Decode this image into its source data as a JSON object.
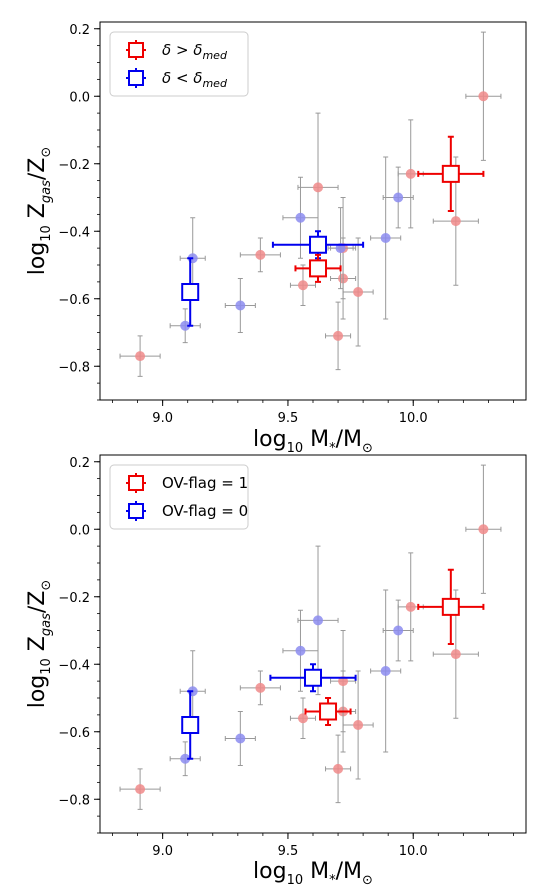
{
  "chart_data": [
    {
      "type": "scatter",
      "xlabel": {
        "base": "log",
        "sub": "10",
        "rest": " M",
        "sub2": "*",
        "tail": "/M",
        "sub3": "⊙"
      },
      "ylabel": {
        "base": "log",
        "sub": "10",
        "rest": " Z",
        "sub2": "gas",
        "tail": "/Z",
        "sub3": "⊙"
      },
      "xlim": [
        8.75,
        10.45
      ],
      "ylim": [
        -0.9,
        0.22
      ],
      "xticks": [
        9.0,
        9.5,
        10.0
      ],
      "xtick_labels": [
        "9.0",
        "9.5",
        "10.0"
      ],
      "yticks": [
        0.2,
        0.0,
        -0.2,
        -0.4,
        -0.6,
        -0.8
      ],
      "ytick_labels": [
        "0.2",
        "0.0",
        "−0.2",
        "−0.4",
        "−0.6",
        "−0.8"
      ],
      "legend": {
        "placement": "top-left",
        "entries": [
          {
            "label_main": "δ > δ",
            "label_sub": "med",
            "color": "#ee0000"
          },
          {
            "label_main": "δ < δ",
            "label_sub": "med",
            "color": "#0000ee"
          }
        ]
      },
      "series": [
        {
          "color": "#ee0000",
          "points": [
            {
              "x": 8.91,
              "y": -0.77,
              "xerr": 0.08,
              "yerr": 0.06
            },
            {
              "x": 9.39,
              "y": -0.47,
              "xerr": 0.08,
              "yerr": 0.05
            },
            {
              "x": 9.56,
              "y": -0.56,
              "xerr": 0.05,
              "yerr": 0.06
            },
            {
              "x": 9.62,
              "y": -0.27,
              "xerr": 0.08,
              "yerr": 0.22
            },
            {
              "x": 9.7,
              "y": -0.71,
              "xerr": 0.05,
              "yerr": 0.1
            },
            {
              "x": 9.72,
              "y": -0.54,
              "xerr": 0.05,
              "yerr": 0.12
            },
            {
              "x": 9.78,
              "y": -0.58,
              "xerr": 0.06,
              "yerr": 0.16
            },
            {
              "x": 9.72,
              "y": -0.45,
              "xerr": 0.05,
              "yerr": 0.15
            },
            {
              "x": 9.99,
              "y": -0.23,
              "xerr": 0.05,
              "yerr": 0.16
            },
            {
              "x": 10.17,
              "y": -0.37,
              "xerr": 0.09,
              "yerr": 0.19
            },
            {
              "x": 10.28,
              "y": 0.0,
              "xerr": 0.07,
              "yerr": 0.19
            }
          ],
          "median": {
            "x": 10.15,
            "y": -0.23,
            "xerr": 0.13,
            "yerr": 0.11
          }
        },
        {
          "color": "#0000ee",
          "points": [
            {
              "x": 9.09,
              "y": -0.68,
              "xerr": 0.06,
              "yerr": 0.05
            },
            {
              "x": 9.12,
              "y": -0.48,
              "xerr": 0.05,
              "yerr": 0.12
            },
            {
              "x": 9.31,
              "y": -0.62,
              "xerr": 0.06,
              "yerr": 0.08
            },
            {
              "x": 9.55,
              "y": -0.36,
              "xerr": 0.07,
              "yerr": 0.12
            },
            {
              "x": 9.71,
              "y": -0.45,
              "xerr": 0.05,
              "yerr": 0.12
            },
            {
              "x": 9.89,
              "y": -0.42,
              "xerr": 0.06,
              "yerr": 0.24
            },
            {
              "x": 9.94,
              "y": -0.3,
              "xerr": 0.06,
              "yerr": 0.09
            }
          ],
          "median": {
            "x": 9.11,
            "y": -0.58,
            "xerr": 0.0,
            "yerr": 0.1
          }
        },
        {
          "color": "#0000ee",
          "points": [],
          "median": {
            "x": 9.62,
            "y": -0.44,
            "xerr": 0.18,
            "yerr": 0.04
          }
        },
        {
          "color": "#ee0000",
          "points": [],
          "median": {
            "x": 9.62,
            "y": -0.51,
            "xerr": 0.09,
            "yerr": 0.04
          }
        }
      ]
    },
    {
      "type": "scatter",
      "xlabel": {
        "base": "log",
        "sub": "10",
        "rest": " M",
        "sub2": "*",
        "tail": "/M",
        "sub3": "⊙"
      },
      "ylabel": {
        "base": "log",
        "sub": "10",
        "rest": " Z",
        "sub2": "gas",
        "tail": "/Z",
        "sub3": "⊙"
      },
      "xlim": [
        8.75,
        10.45
      ],
      "ylim": [
        -0.9,
        0.22
      ],
      "xticks": [
        9.0,
        9.5,
        10.0
      ],
      "xtick_labels": [
        "9.0",
        "9.5",
        "10.0"
      ],
      "yticks": [
        0.2,
        0.0,
        -0.2,
        -0.4,
        -0.6,
        -0.8
      ],
      "ytick_labels": [
        "0.2",
        "0.0",
        "−0.2",
        "−0.4",
        "−0.6",
        "−0.8"
      ],
      "legend": {
        "placement": "top-left",
        "entries": [
          {
            "label_main": "OV-flag  = 1",
            "label_sub": "",
            "color": "#ee0000"
          },
          {
            "label_main": "OV-flag  = 0",
            "label_sub": "",
            "color": "#0000ee"
          }
        ]
      },
      "series": [
        {
          "color": "#ee0000",
          "points": [
            {
              "x": 8.91,
              "y": -0.77,
              "xerr": 0.08,
              "yerr": 0.06
            },
            {
              "x": 9.39,
              "y": -0.47,
              "xerr": 0.08,
              "yerr": 0.05
            },
            {
              "x": 9.56,
              "y": -0.56,
              "xerr": 0.05,
              "yerr": 0.06
            },
            {
              "x": 9.7,
              "y": -0.71,
              "xerr": 0.05,
              "yerr": 0.1
            },
            {
              "x": 9.72,
              "y": -0.54,
              "xerr": 0.05,
              "yerr": 0.12
            },
            {
              "x": 9.72,
              "y": -0.45,
              "xerr": 0.05,
              "yerr": 0.15
            },
            {
              "x": 9.78,
              "y": -0.58,
              "xerr": 0.06,
              "yerr": 0.16
            },
            {
              "x": 9.99,
              "y": -0.23,
              "xerr": 0.05,
              "yerr": 0.16
            },
            {
              "x": 10.17,
              "y": -0.37,
              "xerr": 0.09,
              "yerr": 0.19
            },
            {
              "x": 10.28,
              "y": 0.0,
              "xerr": 0.07,
              "yerr": 0.19
            }
          ],
          "median": {
            "x": 10.15,
            "y": -0.23,
            "xerr": 0.13,
            "yerr": 0.11
          }
        },
        {
          "color": "#0000ee",
          "points": [
            {
              "x": 9.09,
              "y": -0.68,
              "xerr": 0.06,
              "yerr": 0.05
            },
            {
              "x": 9.12,
              "y": -0.48,
              "xerr": 0.05,
              "yerr": 0.12
            },
            {
              "x": 9.31,
              "y": -0.62,
              "xerr": 0.06,
              "yerr": 0.08
            },
            {
              "x": 9.55,
              "y": -0.36,
              "xerr": 0.07,
              "yerr": 0.12
            },
            {
              "x": 9.62,
              "y": -0.27,
              "xerr": 0.08,
              "yerr": 0.22
            },
            {
              "x": 9.89,
              "y": -0.42,
              "xerr": 0.06,
              "yerr": 0.24
            },
            {
              "x": 9.94,
              "y": -0.3,
              "xerr": 0.06,
              "yerr": 0.09
            }
          ],
          "median": {
            "x": 9.11,
            "y": -0.58,
            "xerr": 0.0,
            "yerr": 0.1
          }
        },
        {
          "color": "#0000ee",
          "points": [],
          "median": {
            "x": 9.6,
            "y": -0.44,
            "xerr": 0.17,
            "yerr": 0.04
          }
        },
        {
          "color": "#ee0000",
          "points": [],
          "median": {
            "x": 9.66,
            "y": -0.54,
            "xerr": 0.09,
            "yerr": 0.04
          }
        }
      ]
    }
  ]
}
